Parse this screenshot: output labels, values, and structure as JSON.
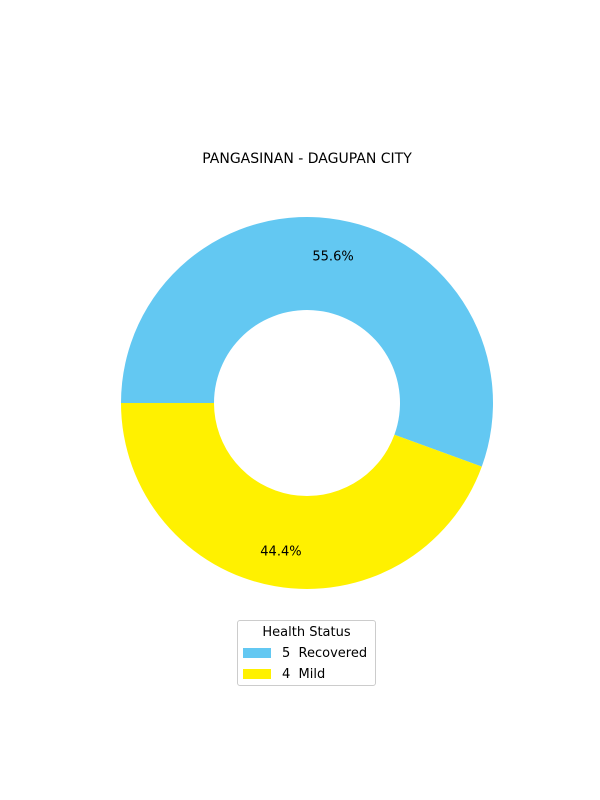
{
  "chart_data": {
    "type": "pie",
    "style": "donut",
    "title": "PANGASINAN - DAGUPAN CITY",
    "slices": [
      {
        "label": "Recovered",
        "value": 5,
        "percent_label": "55.6%",
        "color": "#63c8f2"
      },
      {
        "label": "Mild",
        "value": 4,
        "percent_label": "44.4%",
        "color": "#fff100"
      }
    ],
    "legend": {
      "title": "Health Status",
      "placement": "bottom-center",
      "entries": [
        "5  Recovered",
        "4  Mild"
      ]
    }
  }
}
